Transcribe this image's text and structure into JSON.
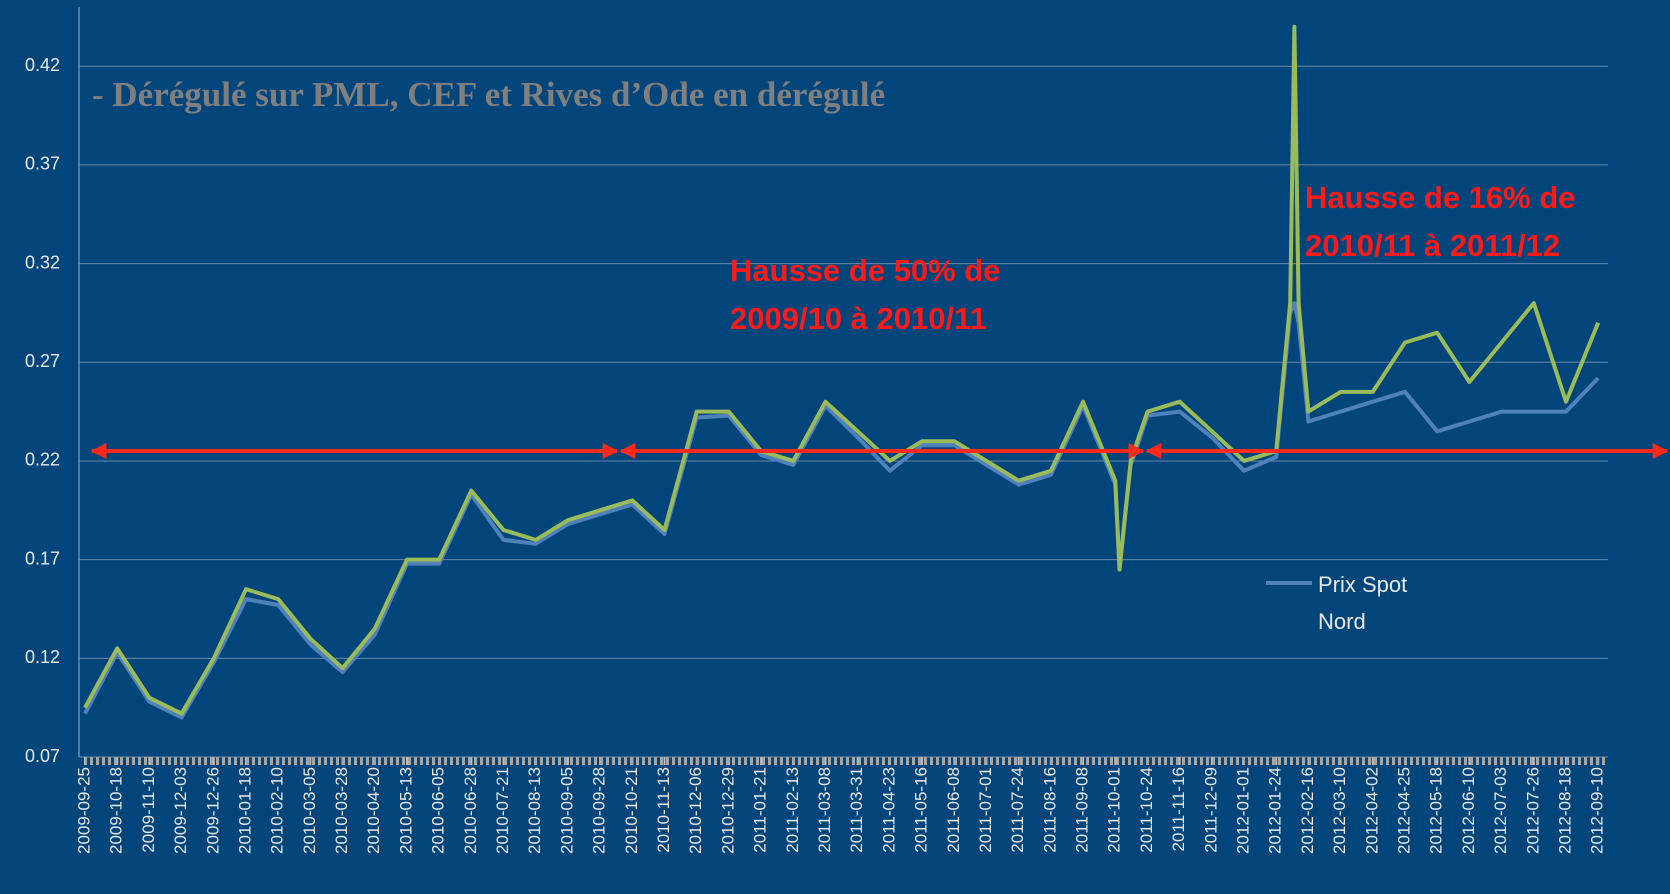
{
  "chart_data": {
    "type": "line",
    "title": "- Dérégulé sur PML, CEF et Rives d’Ode en dérégulé",
    "annotations": [
      "Hausse de 50% de",
      "2009/10 à 2010/11",
      "Hausse de 16% de",
      "2010/11 à 2011/12"
    ],
    "x": [
      "2009-09-25",
      "2009-10-18",
      "2009-11-10",
      "2009-12-03",
      "2009-12-26",
      "2010-01-18",
      "2010-02-10",
      "2010-03-05",
      "2010-03-28",
      "2010-04-20",
      "2010-05-13",
      "2010-06-05",
      "2010-06-28",
      "2010-07-21",
      "2010-08-13",
      "2010-09-05",
      "2010-09-28",
      "2010-10-21",
      "2010-11-13",
      "2010-12-06",
      "2010-12-29",
      "2011-01-21",
      "2011-02-13",
      "2011-03-08",
      "2011-03-31",
      "2011-04-23",
      "2011-05-16",
      "2011-06-08",
      "2011-07-01",
      "2011-07-24",
      "2011-08-16",
      "2011-09-08",
      "2011-10-01",
      "2011-10-04",
      "2011-10-12",
      "2011-10-24",
      "2011-11-16",
      "2011-12-09",
      "2012-01-01",
      "2012-01-24",
      "2012-02-03",
      "2012-02-06",
      "2012-02-09",
      "2012-02-16",
      "2012-03-10",
      "2012-04-02",
      "2012-04-25",
      "2012-05-18",
      "2012-06-10",
      "2012-07-03",
      "2012-07-26",
      "2012-08-18",
      "2012-09-10"
    ],
    "series": [
      {
        "name": "Prix Spot Nord",
        "color": "#4f81bd",
        "values": [
          0.092,
          0.123,
          0.098,
          0.09,
          0.118,
          0.15,
          0.147,
          0.127,
          0.113,
          0.132,
          0.168,
          0.168,
          0.203,
          0.18,
          0.178,
          0.188,
          0.193,
          0.198,
          0.183,
          0.242,
          0.243,
          0.223,
          0.218,
          0.248,
          0.232,
          0.215,
          0.228,
          0.228,
          0.218,
          0.208,
          0.213,
          0.248,
          0.208,
          0.165,
          0.218,
          0.243,
          0.245,
          0.232,
          0.215,
          0.222,
          0.295,
          0.3,
          0.29,
          0.24,
          0.245,
          0.25,
          0.255,
          0.235,
          0.24,
          0.245,
          0.245,
          0.245,
          0.262
        ]
      },
      {
        "color": "#9bbb59",
        "values": [
          0.095,
          0.125,
          0.1,
          0.092,
          0.12,
          0.155,
          0.15,
          0.13,
          0.115,
          0.135,
          0.17,
          0.17,
          0.205,
          0.185,
          0.18,
          0.19,
          0.195,
          0.2,
          0.185,
          0.245,
          0.245,
          0.225,
          0.22,
          0.25,
          0.235,
          0.22,
          0.23,
          0.23,
          0.22,
          0.21,
          0.215,
          0.25,
          0.21,
          0.165,
          0.22,
          0.245,
          0.25,
          0.235,
          0.22,
          0.225,
          0.3,
          0.44,
          0.3,
          0.245,
          0.255,
          0.255,
          0.28,
          0.285,
          0.26,
          0.28,
          0.3,
          0.25,
          0.29
        ]
      }
    ],
    "xlim": [
      "2009-09-25",
      "2012-09-17"
    ],
    "xticks": [
      "2009-09-25",
      "2009-10-18",
      "2009-11-10",
      "2009-12-03",
      "2009-12-26",
      "2010-01-18",
      "2010-02-10",
      "2010-03-05",
      "2010-03-28",
      "2010-04-20",
      "2010-05-13",
      "2010-06-05",
      "2010-06-28",
      "2010-07-21",
      "2010-08-13",
      "2010-09-05",
      "2010-09-28",
      "2010-10-21",
      "2010-11-13",
      "2010-12-06",
      "2010-12-29",
      "2011-01-21",
      "2011-02-13",
      "2011-03-08",
      "2011-03-31",
      "2011-04-23",
      "2011-05-16",
      "2011-06-08",
      "2011-07-01",
      "2011-07-24",
      "2011-08-16",
      "2011-09-08",
      "2011-10-01",
      "2011-10-24",
      "2011-11-16",
      "2011-12-09",
      "2012-01-01",
      "2012-01-24",
      "2012-02-16",
      "2012-03-10",
      "2012-04-02",
      "2012-04-25",
      "2012-05-18",
      "2012-06-10",
      "2012-07-03",
      "2012-07-26",
      "2012-08-18",
      "2012-09-10"
    ],
    "ylim": [
      0.07,
      0.45
    ],
    "yticks": [
      0.07,
      0.12,
      0.17,
      0.22,
      0.27,
      0.32,
      0.37,
      0.42
    ],
    "grid": true
  }
}
